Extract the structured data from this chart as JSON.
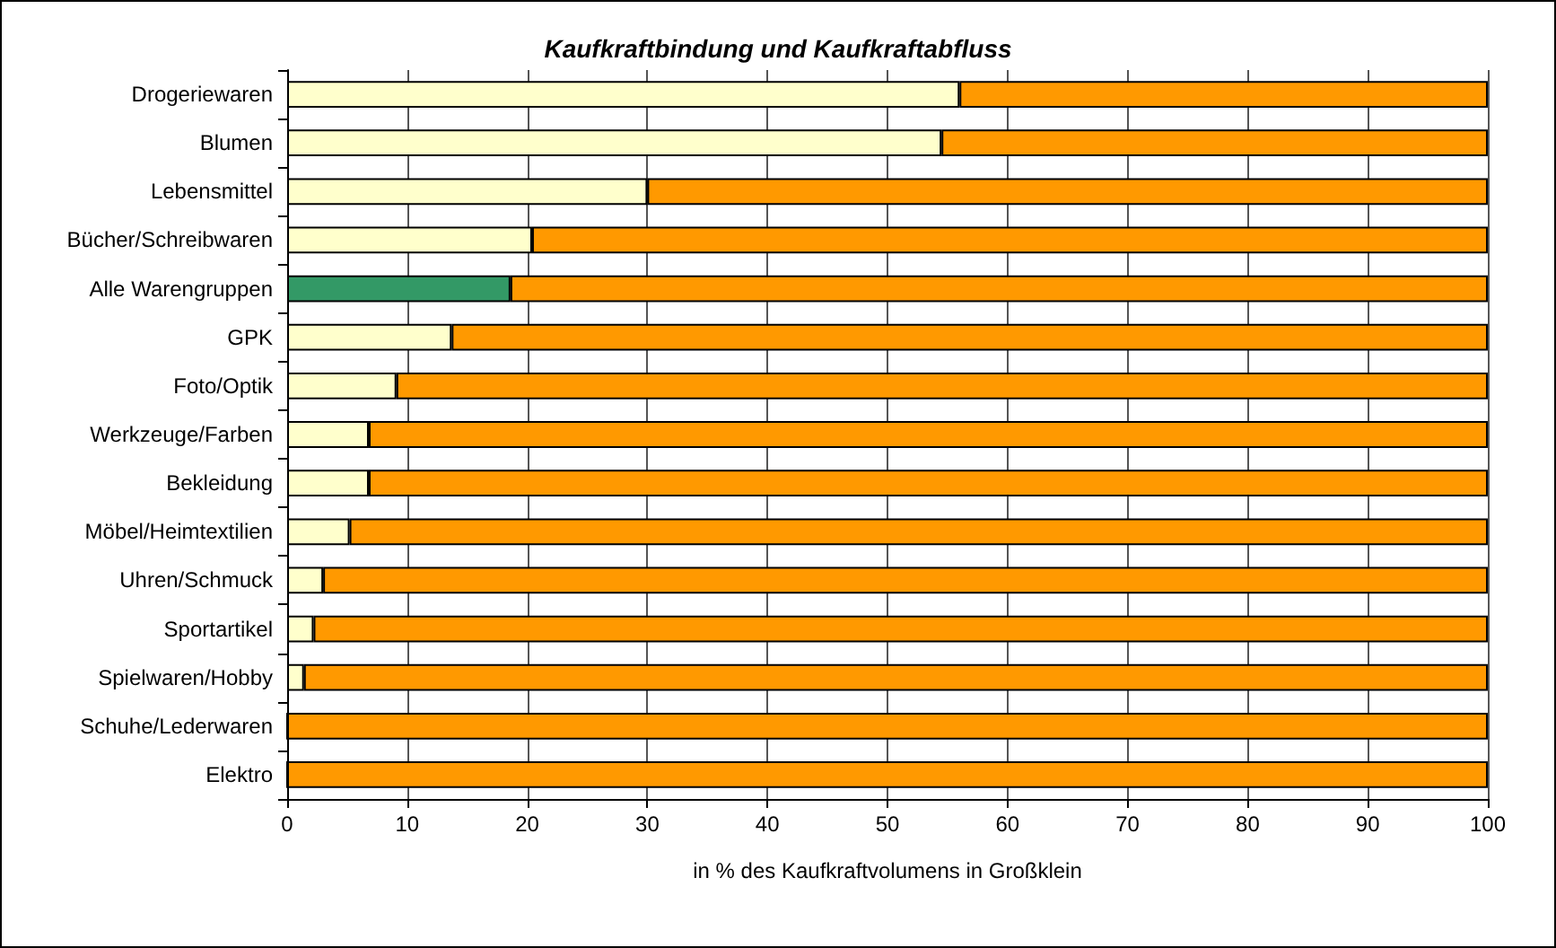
{
  "chart_data": {
    "type": "bar",
    "orientation": "horizontal",
    "stacked": true,
    "title": "Kaufkraftbindung und Kaufkraftabfluss",
    "xlabel": "in % des Kaufkraftvolumens in Großklein",
    "categories": [
      "Drogeriewaren",
      "Blumen",
      "Lebensmittel",
      "Bücher/Schreibwaren",
      "Alle Warengruppen",
      "GPK",
      "Foto/Optik",
      "Werkzeuge/Farben",
      "Bekleidung",
      "Möbel/Heimtextilien",
      "Uhren/Schmuck",
      "Sportartikel",
      "Spielwaren/Hobby",
      "Schuhe/Lederwaren",
      "Elektro"
    ],
    "series": [
      {
        "color": "#ffffcc",
        "colors": [
          "#ffffcc",
          "#ffffcc",
          "#ffffcc",
          "#ffffcc",
          "#339966",
          "#ffffcc",
          "#ffffcc",
          "#ffffcc",
          "#ffffcc",
          "#ffffcc",
          "#ffffcc",
          "#ffffcc",
          "#ffffcc",
          "#ffffcc",
          "#ffffcc"
        ],
        "values": [
          56,
          54.5,
          30,
          20.4,
          18.6,
          13.7,
          9.1,
          6.8,
          6.8,
          5.2,
          3,
          2.2,
          1.4,
          0,
          0
        ]
      },
      {
        "color": "#ff9900",
        "values": [
          44,
          45.5,
          70,
          79.6,
          81.4,
          86.3,
          90.9,
          93.2,
          93.2,
          94.8,
          97,
          97.8,
          98.6,
          100,
          100
        ]
      }
    ],
    "xlim": [
      0,
      100
    ],
    "xticks": [
      0,
      10,
      20,
      30,
      40,
      50,
      60,
      70,
      80,
      90,
      100
    ],
    "grid": "x"
  }
}
